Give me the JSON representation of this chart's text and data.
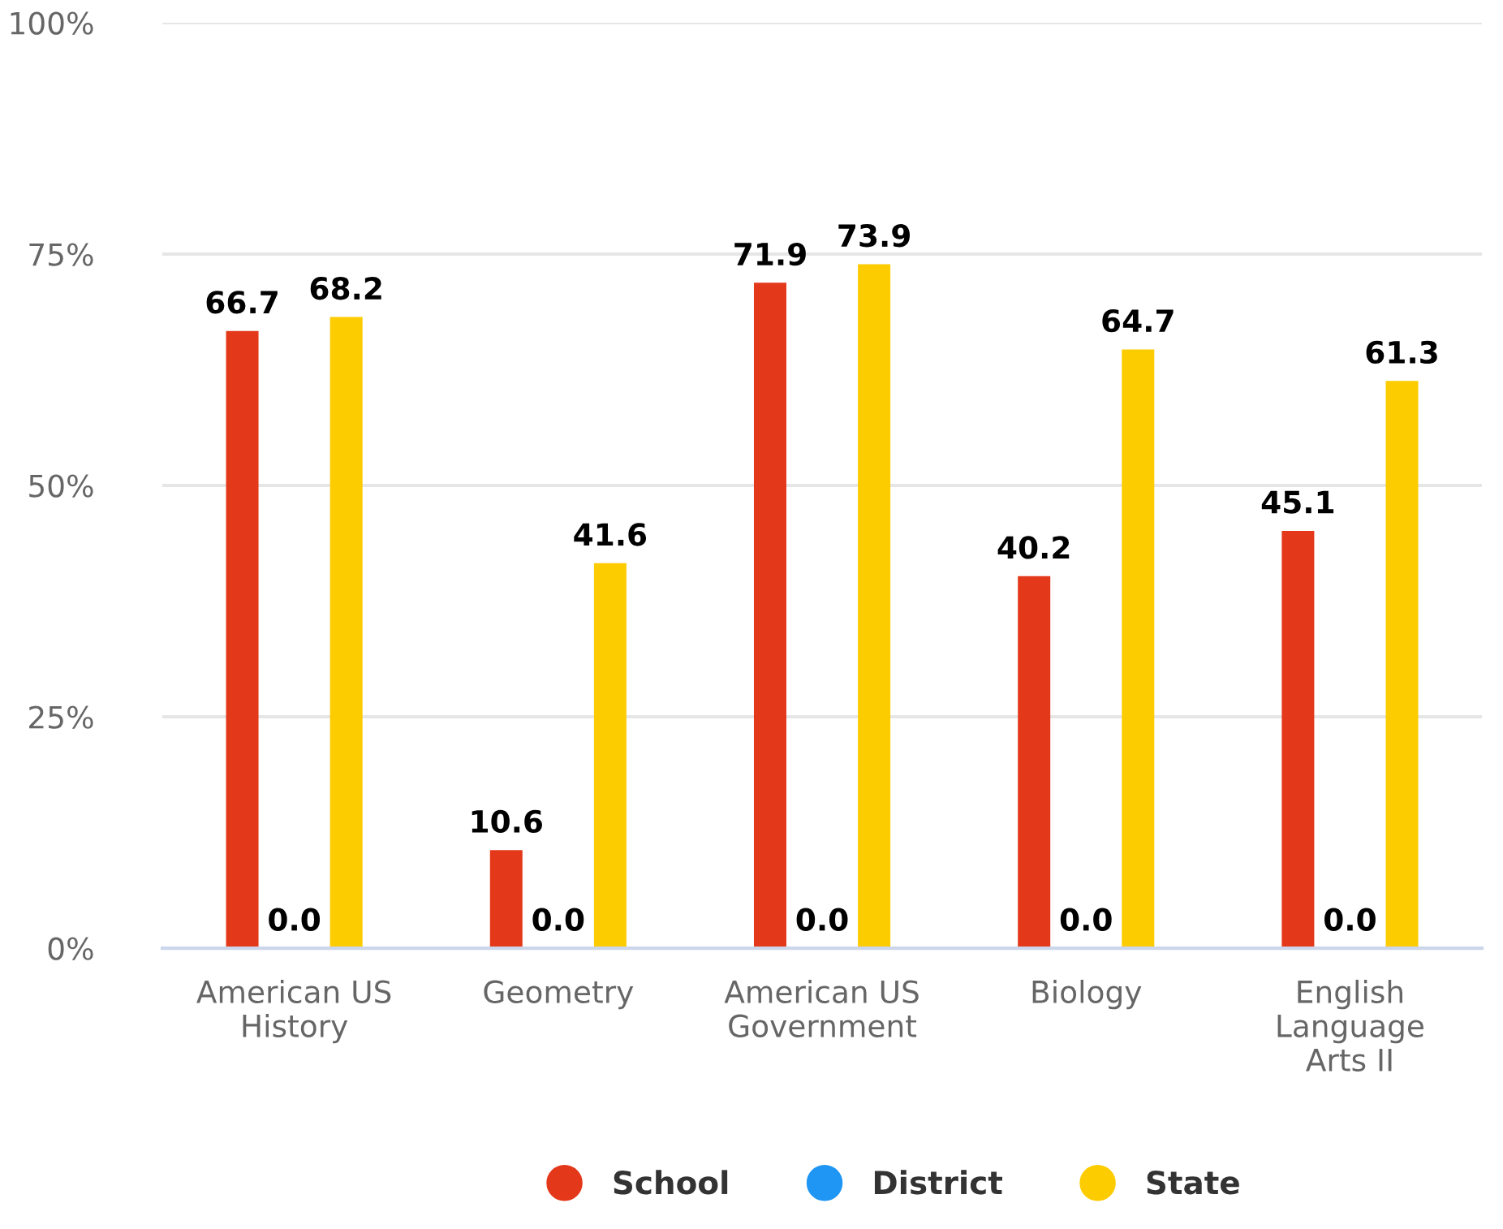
{
  "chart_data": {
    "type": "bar",
    "categories": [
      "American US\nHistory",
      "Geometry",
      "American US\nGovernment",
      "Biology",
      "English\nLanguage\nArts II"
    ],
    "series": [
      {
        "name": "School",
        "color": "#e4381a",
        "values": [
          66.7,
          10.6,
          71.9,
          40.2,
          45.1
        ],
        "value_labels": [
          "66.7",
          "10.6",
          "71.9",
          "40.2",
          "45.1"
        ]
      },
      {
        "name": "District",
        "color": "#1f96f3",
        "values": [
          0,
          0,
          0,
          0,
          0
        ],
        "value_labels": [
          "0.0",
          "0.0",
          "0.0",
          "0.0",
          "0.0"
        ]
      },
      {
        "name": "State",
        "color": "#fdcc00",
        "values": [
          68.2,
          41.6,
          73.9,
          64.7,
          61.3
        ],
        "value_labels": [
          "68.2",
          "41.6",
          "73.9",
          "64.7",
          "61.3"
        ]
      }
    ],
    "ylim": [
      0,
      100
    ],
    "yticks": [
      {
        "value": 0,
        "label": "0%"
      },
      {
        "value": 25,
        "label": "25%"
      },
      {
        "value": 50,
        "label": "50%"
      },
      {
        "value": 75,
        "label": "75%"
      },
      {
        "value": 100,
        "label": "100%"
      }
    ],
    "grid": "y",
    "legend": "bottom"
  }
}
